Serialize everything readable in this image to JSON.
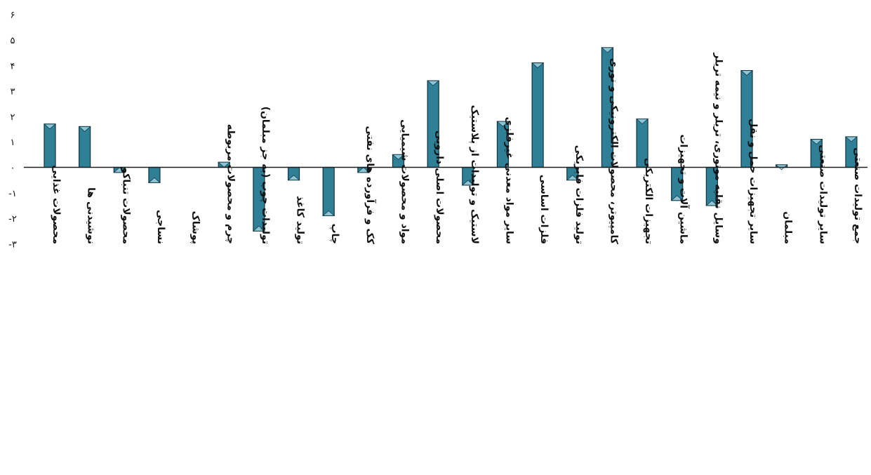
{
  "chart_data": {
    "type": "bar",
    "title": "",
    "xlabel": "",
    "ylabel": "",
    "ylim": [
      -3,
      6
    ],
    "yticks": [
      6,
      5,
      4,
      3,
      2,
      1,
      0,
      -1,
      -2,
      -3
    ],
    "ytick_labels": [
      "۶",
      "۵",
      "۴",
      "۳",
      "۲",
      "۱",
      "۰",
      "-۱",
      "-۲",
      "-۳"
    ],
    "categories": [
      "محصولات غذایی",
      "نوشیدنی ها",
      "محصولات تنباکو",
      "نساجی",
      "پوشاک",
      "چرم و محصولات مربوطه",
      "تولیدات چوب (به جز مبلمان)",
      "تولید کاغذ",
      "چاپ",
      "کک و فرآورده های نفتی",
      "مواد و محصولات شیمیایی",
      "محصولات اصلی دارویی",
      "لاستیک و تولیدات از پلاستیک",
      "سایر مواد معدنی غیرفلزی",
      "فلزات اساسی",
      "تولید فلزات فابریکی",
      "کامپیوتر، محصولات الکترونیکی و نوری",
      "تجهیزات الکتریکی",
      "ماشین آلات و تجهیزات",
      "وسایل نقلیه موتوری، تریلر و نیمه تریلر",
      "سایر تجهیزات حمل و نقل",
      "مبلمان",
      "سایر تولیدات صنعتی",
      "جمع تولیدات صنعتی"
    ],
    "series": [
      {
        "values": [
          1.7,
          1.6,
          -0.2,
          -0.6,
          0,
          0.2,
          -2.5,
          -0.5,
          -1.9,
          -0.2,
          0.5,
          3.4,
          -0.7,
          1.8,
          4.1,
          -0.5,
          4.7,
          1.9,
          -1.3,
          -1.5,
          3.8,
          0.1,
          1.1,
          1.2
        ],
        "color": "#2f7f97"
      }
    ],
    "grid": false,
    "legend": "none"
  }
}
